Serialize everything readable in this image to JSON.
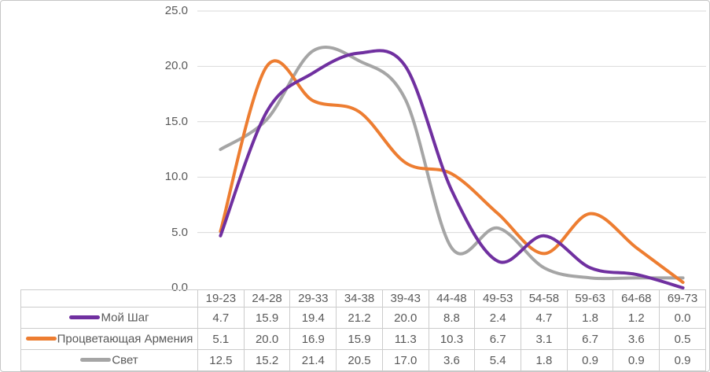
{
  "chart_data": {
    "type": "line",
    "title": "",
    "xlabel": "",
    "ylabel": "",
    "smooth": true,
    "grid": true,
    "legend_position": "table-left",
    "ylim": [
      0,
      25
    ],
    "y_ticks": [
      25,
      20,
      15,
      10,
      5,
      0
    ],
    "y_tick_labels": [
      "25.0",
      "20.0",
      "15.0",
      "10.0",
      "5.0",
      "0.0"
    ],
    "categories": [
      "19-23",
      "24-28",
      "29-33",
      "34-38",
      "39-43",
      "44-48",
      "49-53",
      "54-58",
      "59-63",
      "64-68",
      "69-73"
    ],
    "series": [
      {
        "name": "Мой Шаг",
        "color": "#7030A0",
        "values": [
          4.7,
          15.9,
          19.4,
          21.2,
          20.0,
          8.8,
          2.4,
          4.7,
          1.8,
          1.2,
          0.0
        ],
        "values_display": [
          "4.7",
          "15.9",
          "19.4",
          "21.2",
          "20.0",
          "8.8",
          "2.4",
          "4.7",
          "1.8",
          "1.2",
          "0.0"
        ]
      },
      {
        "name": "Процветающая Армения",
        "color": "#ED7D31",
        "values": [
          5.1,
          20.0,
          16.9,
          15.9,
          11.3,
          10.3,
          6.7,
          3.1,
          6.7,
          3.6,
          0.5
        ],
        "values_display": [
          "5.1",
          "20.0",
          "16.9",
          "15.9",
          "11.3",
          "10.3",
          "6.7",
          "3.1",
          "6.7",
          "3.6",
          "0.5"
        ]
      },
      {
        "name": "Свет",
        "color": "#A5A5A5",
        "values": [
          12.5,
          15.2,
          21.4,
          20.5,
          17.0,
          3.6,
          5.4,
          1.8,
          0.9,
          0.9,
          0.9
        ],
        "values_display": [
          "12.5",
          "15.2",
          "21.4",
          "20.5",
          "17.0",
          "3.6",
          "5.4",
          "1.8",
          "0.9",
          "0.9",
          "0.9"
        ]
      }
    ]
  },
  "colors": {
    "text": "#595959",
    "gridline": "#D9D9D9",
    "table_border": "#CCCCCC",
    "frame_border": "#C6C6C6",
    "background": "#FFFFFF"
  }
}
